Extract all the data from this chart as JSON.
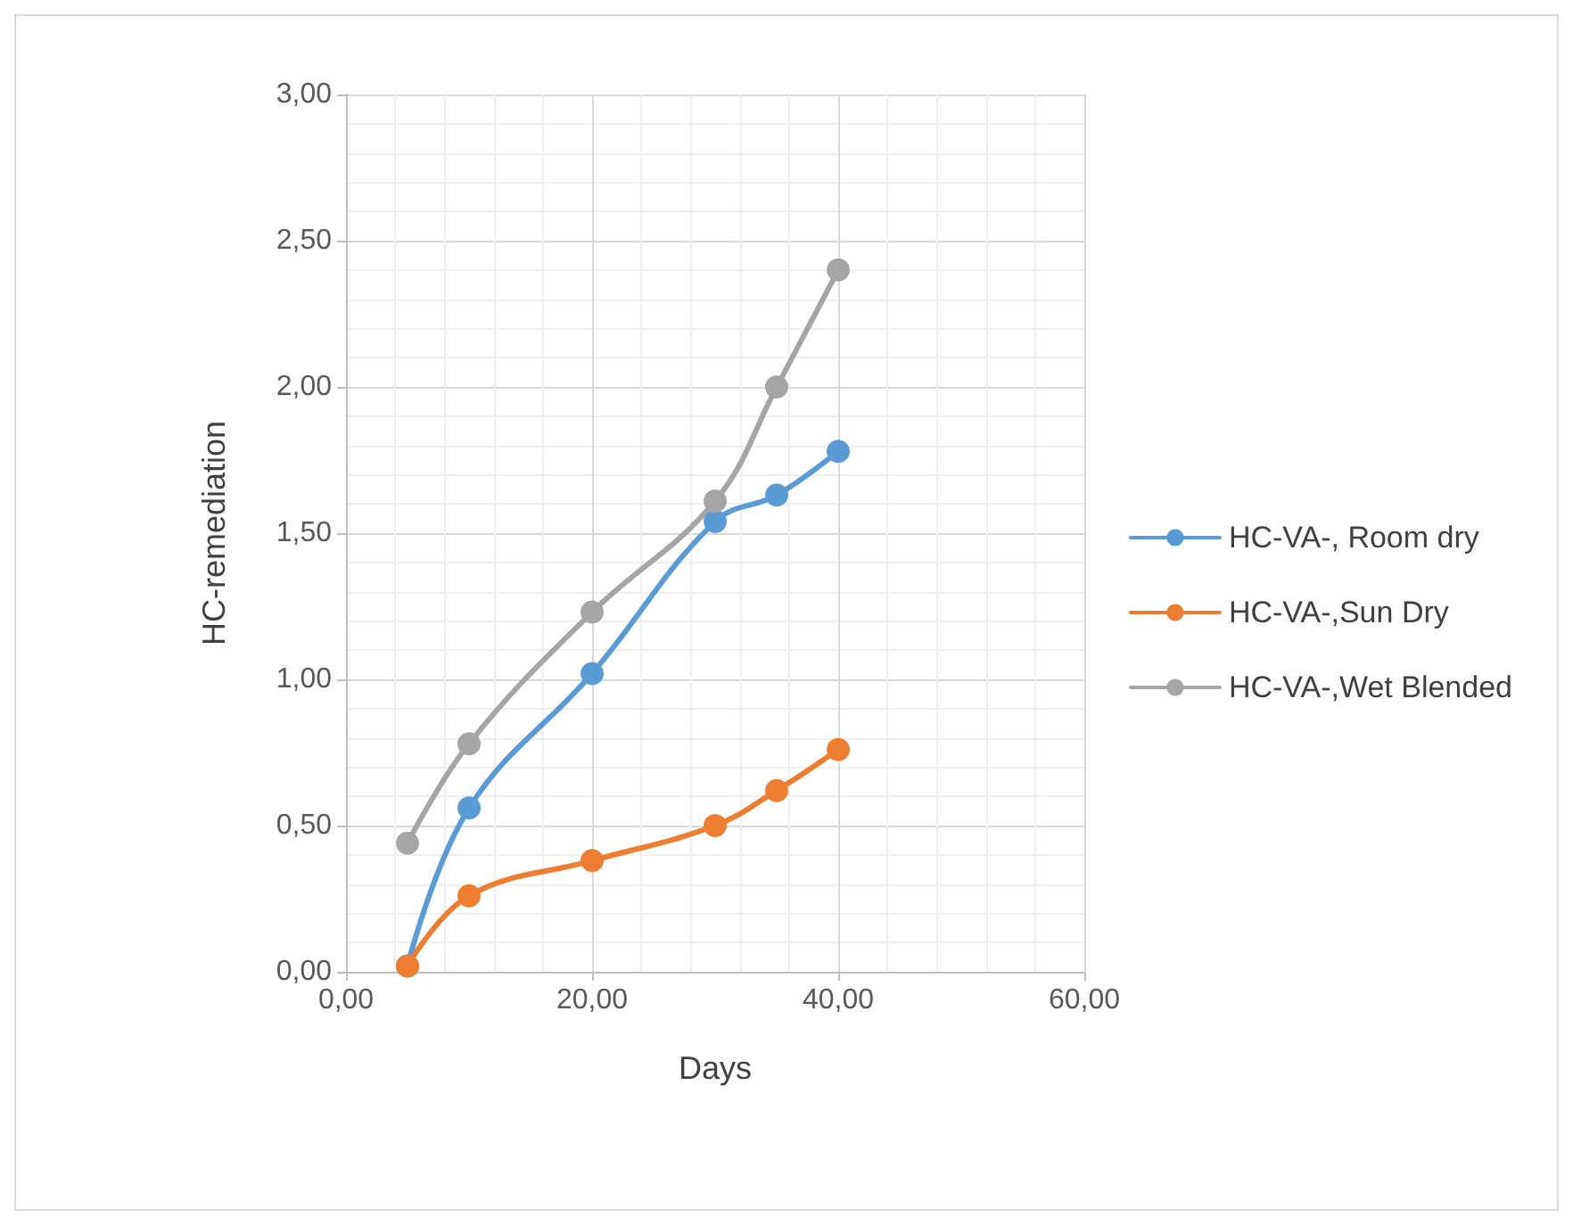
{
  "chart_data": {
    "type": "line",
    "xlabel": "Days",
    "ylabel": "HC-remediation",
    "x": [
      5,
      10,
      20,
      30,
      35,
      40
    ],
    "series": [
      {
        "name": "HC-VA-, Room dry",
        "color": "#5b9bd5",
        "values": [
          0.02,
          0.56,
          1.02,
          1.54,
          1.63,
          1.78
        ]
      },
      {
        "name": "HC-VA-,Sun Dry",
        "color": "#ed7d31",
        "values": [
          0.02,
          0.26,
          0.38,
          0.5,
          0.62,
          0.76
        ]
      },
      {
        "name": "HC-VA-,Wet Blended",
        "color": "#a5a5a5",
        "values": [
          0.44,
          0.78,
          1.23,
          1.61,
          2.0,
          2.4
        ]
      }
    ],
    "xlim": [
      0,
      60
    ],
    "xticks": [
      {
        "value": 0,
        "label": "0,00"
      },
      {
        "value": 20,
        "label": "20,00"
      },
      {
        "value": 40,
        "label": "40,00"
      },
      {
        "value": 60,
        "label": "60,00"
      }
    ],
    "ylim": [
      0,
      3
    ],
    "yticks": [
      {
        "value": 0,
        "label": "0,00"
      },
      {
        "value": 0.5,
        "label": "0,50"
      },
      {
        "value": 1,
        "label": "1,00"
      },
      {
        "value": 1.5,
        "label": "1,50"
      },
      {
        "value": 2,
        "label": "2,00"
      },
      {
        "value": 2.5,
        "label": "2,50"
      },
      {
        "value": 3,
        "label": "3,00"
      }
    ],
    "grid": true,
    "legend": "right",
    "marker": "circle",
    "line_style": "solid"
  }
}
